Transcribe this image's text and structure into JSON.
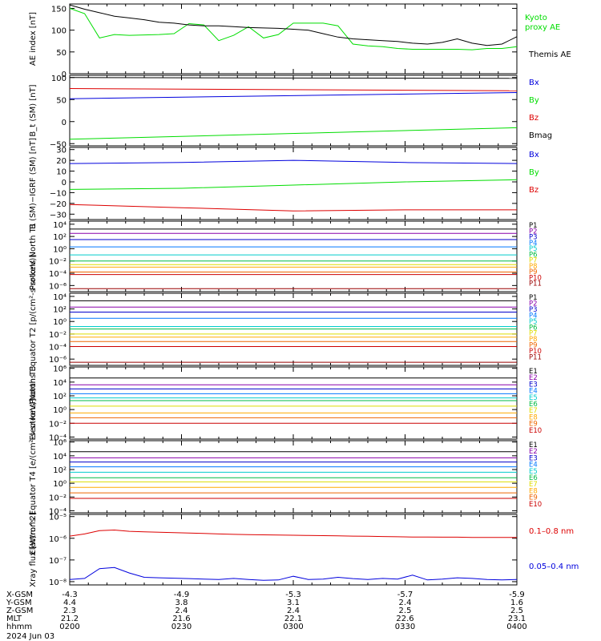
{
  "date_label": "2024 Jun 03",
  "time_axis": {
    "times": [
      "0200",
      "0230",
      "0300",
      "0330",
      "0400"
    ],
    "rows": [
      {
        "label": "X-GSM",
        "values": [
          "-4.3",
          "-4.9",
          "-5.3",
          "-5.7",
          "-5.9"
        ]
      },
      {
        "label": "Y-GSM",
        "values": [
          "4.4",
          "3.8",
          "3.1",
          "2.4",
          "1.6"
        ]
      },
      {
        "label": "Z-GSM",
        "values": [
          "2.3",
          "2.4",
          "2.4",
          "2.5",
          "2.5"
        ]
      },
      {
        "label": "MLT",
        "values": [
          "21.2",
          "21.6",
          "22.1",
          "22.6",
          "23.1"
        ]
      },
      {
        "label": "hhmm",
        "values": [
          "0200",
          "0230",
          "0300",
          "0330",
          "0400"
        ]
      }
    ]
  },
  "colors": {
    "black": "#000000",
    "green": "#00dd00",
    "blue": "#0000dd",
    "red": "#dd0000",
    "c1": "#000000",
    "c2": "#8800aa",
    "c3": "#0000cc",
    "c4": "#0077ff",
    "c5": "#00cccc",
    "c6": "#00bb44",
    "c7": "#dddd00",
    "c8": "#ffaa00",
    "c9": "#ee6600",
    "c10": "#cc0000",
    "c11": "#990000"
  },
  "chart_data": [
    {
      "type": "line",
      "ylabel": "AE index [nT]",
      "ylim": [
        0,
        160
      ],
      "yticks": [
        0,
        50,
        100,
        150
      ],
      "ytick_labels": [
        "0",
        "50",
        "100",
        "150"
      ],
      "x": [
        0,
        4,
        8,
        12,
        16,
        20,
        24,
        28,
        32,
        36,
        40,
        44,
        48,
        52,
        56,
        60,
        64,
        68,
        72,
        76,
        80,
        84,
        88,
        92,
        96,
        100,
        104,
        108,
        112,
        116,
        120
      ],
      "series": [
        {
          "name": "Kyoto proxy AE",
          "color": "green",
          "legend_lines": [
            "Kyoto",
            "proxy AE"
          ],
          "values": [
            150,
            138,
            82,
            90,
            88,
            89,
            90,
            92,
            115,
            112,
            76,
            88,
            108,
            82,
            90,
            116,
            116,
            116,
            110,
            68,
            64,
            62,
            58,
            56,
            56,
            56,
            56,
            55,
            58,
            58,
            62
          ]
        },
        {
          "name": "Themis AE",
          "color": "black",
          "legend_lines": [
            "Themis AE"
          ],
          "values": [
            158,
            148,
            140,
            132,
            128,
            124,
            118,
            116,
            112,
            110,
            110,
            108,
            106,
            105,
            104,
            102,
            100,
            92,
            84,
            80,
            78,
            76,
            74,
            70,
            68,
            72,
            80,
            70,
            65,
            68,
            85
          ]
        }
      ]
    },
    {
      "type": "line",
      "ylabel": "B_t (SM) [nT]",
      "ylim": [
        -55,
        105
      ],
      "yticks": [
        -50,
        0,
        50,
        100
      ],
      "ytick_labels": [
        "−50",
        "0",
        "50",
        "100"
      ],
      "x": [
        0,
        120
      ],
      "series": [
        {
          "name": "Bx",
          "color": "blue",
          "values": [
            52,
            66
          ]
        },
        {
          "name": "By",
          "color": "green",
          "values": [
            -40,
            -14
          ]
        },
        {
          "name": "Bz",
          "color": "red",
          "values": [
            75,
            70
          ]
        },
        {
          "name": "Bmag",
          "color": "black",
          "values": [
            100,
            98
          ]
        }
      ]
    },
    {
      "type": "line",
      "ylabel": "B (SM)−IGRF (SM) [nT]",
      "ylim": [
        -35,
        32
      ],
      "yticks": [
        -30,
        -20,
        -10,
        0,
        10,
        20,
        30
      ],
      "ytick_labels": [
        "−30",
        "−20",
        "−10",
        "0",
        "10",
        "20",
        "30"
      ],
      "x": [
        0,
        30,
        60,
        90,
        120
      ],
      "series": [
        {
          "name": "Bx",
          "color": "blue",
          "values": [
            17,
            18,
            20,
            18,
            17
          ]
        },
        {
          "name": "By",
          "color": "green",
          "values": [
            -7,
            -6,
            -3,
            0,
            2
          ]
        },
        {
          "name": "Bz",
          "color": "red",
          "values": [
            -21,
            -24,
            -27,
            -26,
            -26
          ]
        }
      ]
    },
    {
      "type": "line",
      "log": true,
      "ylabel": "Protons North T1",
      "ylim": [
        -7,
        4.5
      ],
      "yticks": [
        4,
        2,
        0,
        -2,
        -4,
        -6
      ],
      "ytick_labels": [
        "10⁴",
        "10²",
        "10⁰",
        "10⁻²",
        "10⁻⁴",
        "10⁻⁶"
      ],
      "x": [
        0,
        120
      ],
      "series": [
        {
          "name": "P1",
          "color": "c1",
          "values": [
            3.2,
            3.2
          ]
        },
        {
          "name": "P2",
          "color": "c2",
          "values": [
            2.5,
            2.5
          ]
        },
        {
          "name": "P3",
          "color": "c3",
          "values": [
            1.5,
            1.5
          ]
        },
        {
          "name": "P4",
          "color": "c4",
          "values": [
            0.3,
            0.3
          ]
        },
        {
          "name": "P5",
          "color": "c5",
          "values": [
            -1,
            -1
          ]
        },
        {
          "name": "P6",
          "color": "c6",
          "values": [
            -2,
            -2
          ]
        },
        {
          "name": "P7",
          "color": "c7",
          "values": [
            -2.6,
            -2.6
          ]
        },
        {
          "name": "P8",
          "color": "c8",
          "values": [
            -3.0,
            -3.0
          ]
        },
        {
          "name": "P9",
          "color": "c9",
          "values": [
            -3.8,
            -3.8
          ]
        },
        {
          "name": "P10",
          "color": "c10",
          "values": [
            -4.2,
            -4.2
          ]
        },
        {
          "name": "P11",
          "color": "c11",
          "values": [
            -6.5,
            -6.5
          ]
        }
      ]
    },
    {
      "type": "line",
      "log": true,
      "ylabel": "Protons Equator T2 [p/(cm²-s-sr-keV)]",
      "ylim": [
        -7,
        4.5
      ],
      "yticks": [
        4,
        2,
        0,
        -2,
        -4,
        -6
      ],
      "ytick_labels": [
        "10⁴",
        "10²",
        "10⁰",
        "10⁻²",
        "10⁻⁴",
        "10⁻⁶"
      ],
      "x": [
        0,
        120
      ],
      "series": [
        {
          "name": "P1",
          "color": "c1",
          "values": [
            3.3,
            3.3
          ]
        },
        {
          "name": "P2",
          "color": "c2",
          "values": [
            2.3,
            2.3
          ]
        },
        {
          "name": "P3",
          "color": "c3",
          "values": [
            1.5,
            1.5
          ]
        },
        {
          "name": "P4",
          "color": "c4",
          "values": [
            0.5,
            0.5
          ]
        },
        {
          "name": "P5",
          "color": "c5",
          "values": [
            -0.8,
            -0.8
          ]
        },
        {
          "name": "P6",
          "color": "c6",
          "values": [
            -1.2,
            -1.2
          ]
        },
        {
          "name": "P7",
          "color": "c7",
          "values": [
            -2.0,
            -2.0
          ]
        },
        {
          "name": "P8",
          "color": "c8",
          "values": [
            -2.5,
            -2.5
          ]
        },
        {
          "name": "P9",
          "color": "c9",
          "values": [
            -3.2,
            -3.2
          ]
        },
        {
          "name": "P10",
          "color": "c10",
          "values": [
            -4.0,
            -4.0
          ]
        },
        {
          "name": "P11",
          "color": "c11",
          "values": [
            -6.5,
            -6.5
          ]
        }
      ]
    },
    {
      "type": "line",
      "log": true,
      "ylabel": "Electrons North T3",
      "ylim": [
        -4.3,
        6.2
      ],
      "yticks": [
        6,
        4,
        2,
        0,
        -2,
        -4
      ],
      "ytick_labels": [
        "10⁶",
        "10⁴",
        "10²",
        "10⁰",
        "10⁻²",
        "10⁻⁴"
      ],
      "x": [
        0,
        120
      ],
      "series": [
        {
          "name": "E1",
          "color": "c1",
          "values": [
            4.6,
            4.6
          ]
        },
        {
          "name": "E2",
          "color": "c2",
          "values": [
            3.6,
            3.6
          ]
        },
        {
          "name": "E3",
          "color": "c3",
          "values": [
            3.0,
            3.0
          ]
        },
        {
          "name": "E4",
          "color": "c4",
          "values": [
            2.3,
            2.3
          ]
        },
        {
          "name": "E5",
          "color": "c5",
          "values": [
            1.7,
            1.7
          ]
        },
        {
          "name": "E6",
          "color": "c6",
          "values": [
            1.3,
            1.3
          ]
        },
        {
          "name": "E7",
          "color": "c7",
          "values": [
            0.5,
            0.5
          ]
        },
        {
          "name": "E8",
          "color": "c8",
          "values": [
            -0.5,
            -0.5
          ]
        },
        {
          "name": "E9",
          "color": "c9",
          "values": [
            -1.2,
            -1.2
          ]
        },
        {
          "name": "E10",
          "color": "c10",
          "values": [
            -2.0,
            -2.0
          ]
        }
      ]
    },
    {
      "type": "line",
      "log": true,
      "ylabel": "Electrons Equator T4 [e/(cm²-s-sr-keV)]",
      "ylim": [
        -4.3,
        6.2
      ],
      "yticks": [
        6,
        4,
        2,
        0,
        -2,
        -4
      ],
      "ytick_labels": [
        "10⁶",
        "10⁴",
        "10²",
        "10⁰",
        "10⁻²",
        "10⁻⁴"
      ],
      "x": [
        0,
        120
      ],
      "series": [
        {
          "name": "E1",
          "color": "c1",
          "values": [
            4.6,
            4.6
          ]
        },
        {
          "name": "E2",
          "color": "c2",
          "values": [
            3.7,
            3.7
          ]
        },
        {
          "name": "E3",
          "color": "c3",
          "values": [
            3.1,
            3.1
          ]
        },
        {
          "name": "E4",
          "color": "c4",
          "values": [
            2.4,
            2.4
          ]
        },
        {
          "name": "E5",
          "color": "c5",
          "values": [
            1.6,
            1.6
          ]
        },
        {
          "name": "E6",
          "color": "c6",
          "values": [
            0.8,
            0.8
          ]
        },
        {
          "name": "E7",
          "color": "c7",
          "values": [
            0.2,
            0.2
          ]
        },
        {
          "name": "E8",
          "color": "c8",
          "values": [
            -0.6,
            -0.6
          ]
        },
        {
          "name": "E9",
          "color": "c9",
          "values": [
            -1.4,
            -1.4
          ]
        },
        {
          "name": "E10",
          "color": "c10",
          "values": [
            -2.2,
            -2.2
          ]
        }
      ]
    },
    {
      "type": "line",
      "log": true,
      "ylabel": "Xray flux [W/m^2]",
      "ylim": [
        -8.15,
        -4.9
      ],
      "yticks": [
        -5,
        -6,
        -7,
        -8
      ],
      "ytick_labels": [
        "10⁻⁵",
        "10⁻⁶",
        "10⁻⁷",
        "10⁻⁸"
      ],
      "x": [
        0,
        4,
        8,
        12,
        16,
        20,
        24,
        28,
        32,
        36,
        40,
        44,
        48,
        52,
        56,
        60,
        64,
        68,
        72,
        76,
        80,
        84,
        88,
        92,
        96,
        100,
        104,
        108,
        112,
        116,
        120
      ],
      "series": [
        {
          "name": "0.1–0.8 nm",
          "color": "red",
          "values": [
            -5.9,
            -5.8,
            -5.65,
            -5.62,
            -5.68,
            -5.7,
            -5.72,
            -5.74,
            -5.76,
            -5.78,
            -5.8,
            -5.82,
            -5.83,
            -5.84,
            -5.85,
            -5.86,
            -5.87,
            -5.88,
            -5.89,
            -5.9,
            -5.91,
            -5.92,
            -5.93,
            -5.94,
            -5.94,
            -5.95,
            -5.95,
            -5.96,
            -5.96,
            -5.96,
            -5.96
          ]
        },
        {
          "name": "0.05–0.4 nm",
          "color": "blue",
          "values": [
            -7.9,
            -7.85,
            -7.4,
            -7.35,
            -7.6,
            -7.8,
            -7.82,
            -7.84,
            -7.86,
            -7.88,
            -7.9,
            -7.85,
            -7.9,
            -7.94,
            -7.92,
            -7.75,
            -7.9,
            -7.88,
            -7.8,
            -7.86,
            -7.9,
            -7.85,
            -7.88,
            -7.7,
            -7.92,
            -7.88,
            -7.82,
            -7.85,
            -7.9,
            -7.92,
            -7.9
          ]
        }
      ]
    }
  ]
}
